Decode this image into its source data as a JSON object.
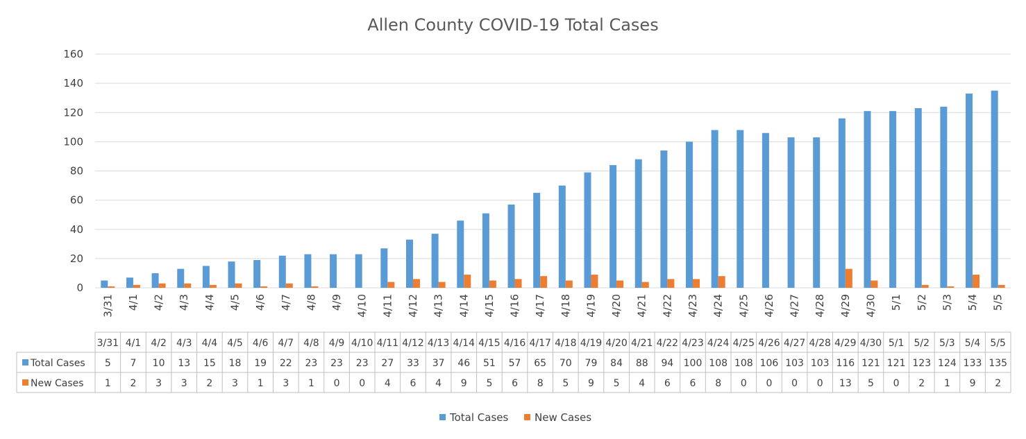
{
  "chart_data": {
    "type": "bar",
    "title": "Allen County COVID-19 Total Cases",
    "categories": [
      "3/31",
      "4/1",
      "4/2",
      "4/3",
      "4/4",
      "4/5",
      "4/6",
      "4/7",
      "4/8",
      "4/9",
      "4/10",
      "4/11",
      "4/12",
      "4/13",
      "4/14",
      "4/15",
      "4/16",
      "4/17",
      "4/18",
      "4/19",
      "4/20",
      "4/21",
      "4/22",
      "4/23",
      "4/24",
      "4/25",
      "4/26",
      "4/27",
      "4/28",
      "4/29",
      "4/30",
      "5/1",
      "5/2",
      "5/3",
      "5/4",
      "5/5"
    ],
    "series": [
      {
        "name": "Total Cases",
        "color": "#5B9BD5",
        "values": [
          5,
          7,
          10,
          13,
          15,
          18,
          19,
          22,
          23,
          23,
          23,
          27,
          33,
          37,
          46,
          51,
          57,
          65,
          70,
          79,
          84,
          88,
          94,
          100,
          108,
          108,
          106,
          103,
          103,
          116,
          121,
          121,
          123,
          124,
          133,
          135
        ]
      },
      {
        "name": "New Cases",
        "color": "#ED7D31",
        "values": [
          1,
          2,
          3,
          3,
          2,
          3,
          1,
          3,
          1,
          0,
          0,
          4,
          6,
          4,
          9,
          5,
          6,
          8,
          5,
          9,
          5,
          4,
          6,
          6,
          8,
          0,
          0,
          0,
          0,
          13,
          5,
          0,
          2,
          1,
          9,
          2
        ]
      }
    ],
    "ylim": [
      0,
      160
    ],
    "yticks": [
      0,
      20,
      40,
      60,
      80,
      100,
      120,
      140,
      160
    ],
    "grid": true,
    "legend": "bottom",
    "data_table": true
  }
}
